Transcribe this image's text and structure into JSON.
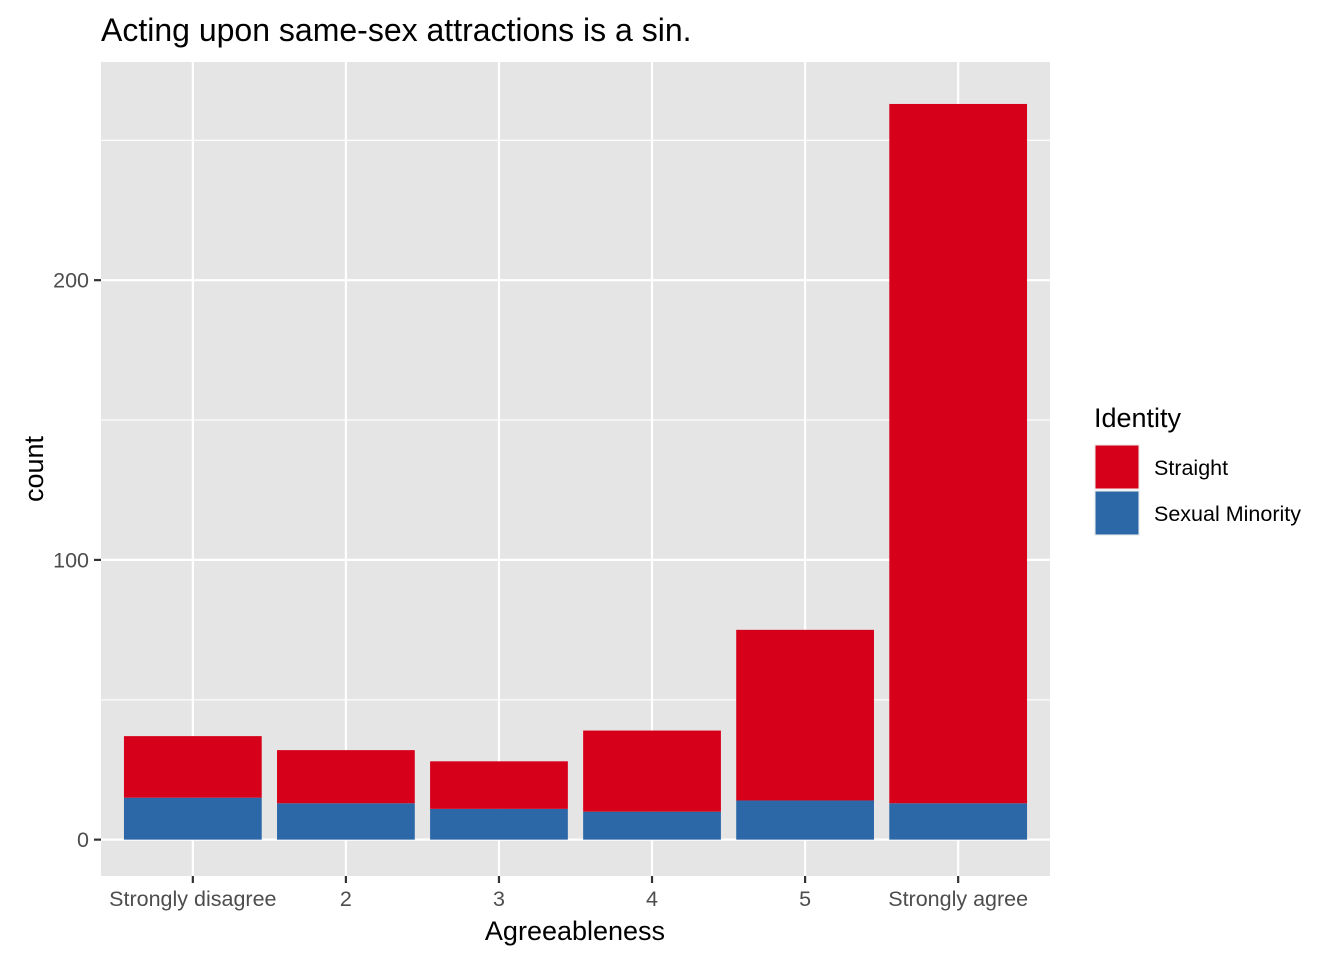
{
  "chart_data": {
    "type": "bar",
    "stacked": true,
    "title": "Acting upon same-sex attractions is a sin.",
    "xlabel": "Agreeableness",
    "ylabel": "count",
    "categories": [
      "Strongly disagree",
      "2",
      "3",
      "4",
      "5",
      "Strongly agree"
    ],
    "series": [
      {
        "name": "Straight",
        "color": "#D7001A",
        "values": [
          22,
          19,
          17,
          29,
          61,
          250
        ]
      },
      {
        "name": "Sexual Minority",
        "color": "#2C68A8",
        "values": [
          15,
          13,
          11,
          10,
          14,
          13
        ]
      }
    ],
    "stack_order": [
      "Sexual Minority",
      "Straight"
    ],
    "ylim": [
      -13,
      278
    ],
    "yticks": [
      0,
      100,
      200
    ],
    "yticks_minor": [
      50,
      150,
      250
    ],
    "grid": true,
    "panel_background": "#E5E5E5",
    "legend": {
      "title": "Identity",
      "position": "right"
    }
  }
}
